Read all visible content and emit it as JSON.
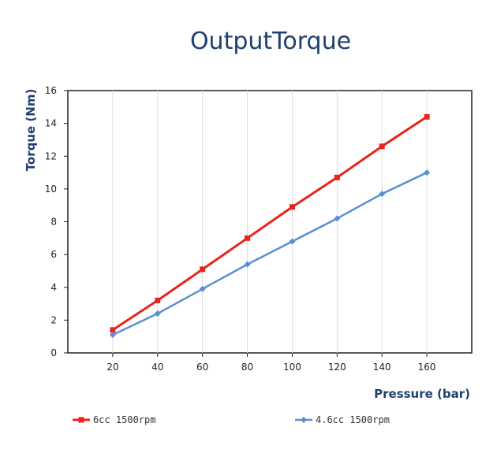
{
  "chart_data": {
    "type": "line",
    "title": "OutputTorque",
    "xlabel": "Pressure (bar)",
    "ylabel": "Torque (Nm)",
    "x": [
      20,
      40,
      60,
      80,
      100,
      120,
      140,
      160
    ],
    "xlim": [
      0,
      180
    ],
    "ylim": [
      0,
      16
    ],
    "yticks": [
      0,
      2,
      4,
      6,
      8,
      10,
      12,
      14,
      16
    ],
    "grid": "vertical",
    "legend_position": "bottom",
    "series": [
      {
        "name": "6cc 1500rpm",
        "color": "#e8231c",
        "marker": "square",
        "values": [
          1.4,
          3.2,
          5.1,
          7.0,
          8.9,
          10.7,
          12.6,
          14.4
        ]
      },
      {
        "name": "4.6cc 1500rpm",
        "color": "#5b8fd2",
        "marker": "diamond",
        "values": [
          1.1,
          2.4,
          3.9,
          5.4,
          6.8,
          8.2,
          9.7,
          11.0
        ]
      }
    ]
  }
}
